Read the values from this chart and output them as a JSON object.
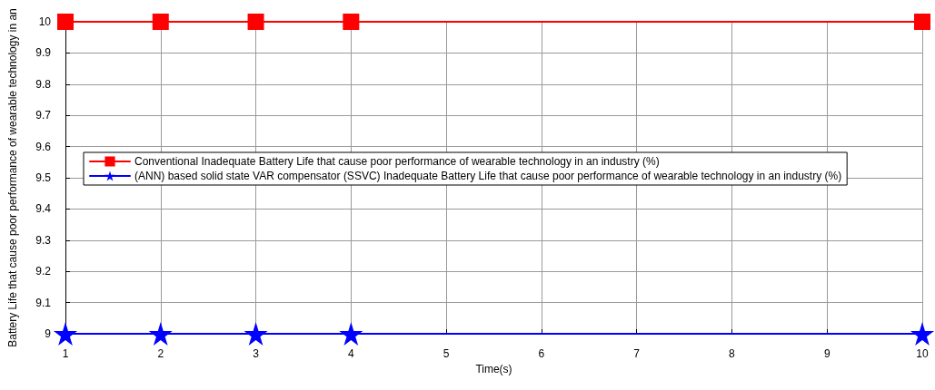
{
  "chart_data": {
    "type": "line",
    "xlabel": "Time(s)",
    "ylabel": "Battery Life that cause poor performance of wearable technology in an",
    "x": [
      1,
      2,
      3,
      4,
      10
    ],
    "series": [
      {
        "name": "Conventional Inadequate Battery Life that cause poor performance of wearable technology in an industry (%)",
        "color": "#ff0000",
        "marker": "square",
        "values": [
          10,
          10,
          10,
          10,
          10
        ]
      },
      {
        "name": "(ANN) based solid state VAR compensator (SSVC) Inadequate Battery Life that cause poor performance of wearable technology in an industry (%)",
        "color": "#0000ff",
        "marker": "star",
        "values": [
          9,
          9,
          9,
          9,
          9
        ]
      }
    ],
    "xlim": [
      1,
      10
    ],
    "xticks": [
      1,
      2,
      3,
      4,
      5,
      6,
      7,
      8,
      9,
      10
    ],
    "ylim": [
      9,
      10
    ],
    "yticks": [
      9,
      9.1,
      9.2,
      9.3,
      9.4,
      9.5,
      9.6,
      9.7,
      9.8,
      9.9,
      10
    ],
    "grid": true,
    "legend": "left",
    "line_style": "solid"
  }
}
